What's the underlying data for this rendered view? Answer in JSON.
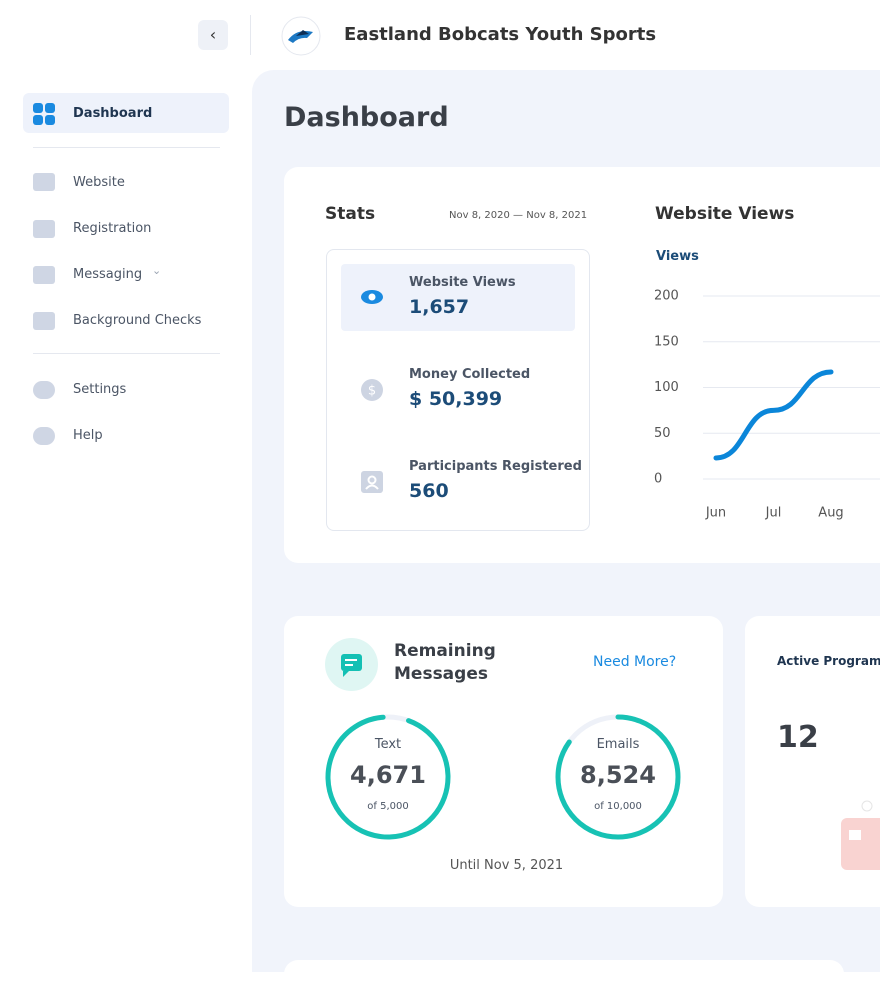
{
  "header": {
    "title": "Eastland Bobcats Youth Sports"
  },
  "nav": {
    "items": [
      "Dashboard",
      "Website",
      "Registration",
      "Messaging",
      "Background Checks",
      "Settings",
      "Help"
    ]
  },
  "page": {
    "title": "Dashboard"
  },
  "stats": {
    "title": "Stats",
    "date_range": "Nov 8, 2020 — Nov 8, 2021",
    "items": [
      {
        "label": "Website Views",
        "value": "1,657"
      },
      {
        "label": "Money Collected",
        "value": "$ 50,399"
      },
      {
        "label": "Participants Registered",
        "value": "560"
      }
    ]
  },
  "chart_data": {
    "type": "line",
    "title": "Website Views",
    "y_label": "Views",
    "categories": [
      "Jun",
      "Jul",
      "Aug"
    ],
    "series": [
      {
        "name": "Views",
        "color": "#0b86d9",
        "values": [
          23,
          75,
          117
        ]
      }
    ],
    "ylim": [
      0,
      200
    ],
    "yticks": [
      0,
      50,
      100,
      150,
      200
    ],
    "grid": true
  },
  "messages": {
    "title_line1": "Remaining",
    "title_line2": "Messages",
    "link": "Need More?",
    "text": {
      "label": "Text",
      "value": "4,671",
      "total": "of 5,000"
    },
    "emails": {
      "label": "Emails",
      "value": "8,524",
      "total": "of 10,000"
    },
    "until": "Until Nov 5, 2021"
  },
  "programs": {
    "title": "Active Programs",
    "value": "12"
  }
}
